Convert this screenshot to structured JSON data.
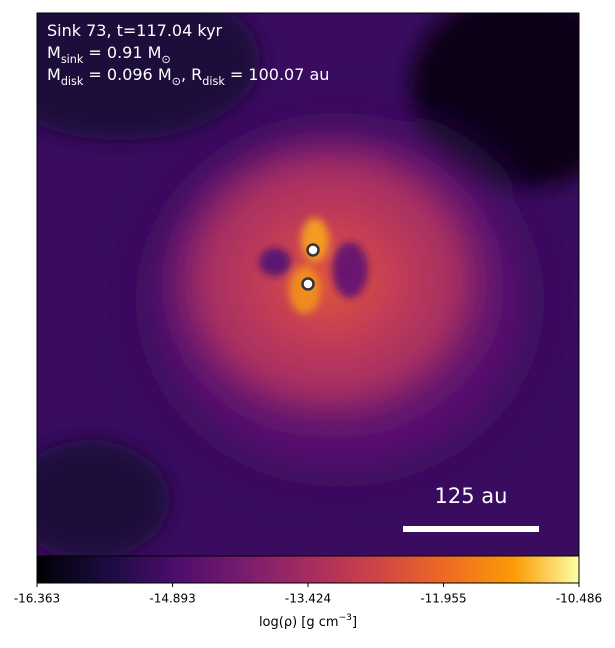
{
  "chart_data": {
    "type": "heatmap",
    "annotations": [
      [
        "Sink 73, t=117.04 kyr"
      ],
      [
        "M",
        "sink",
        " = 0.91 M",
        "⊙"
      ],
      [
        "M",
        "disk",
        " = 0.096 M",
        "⊙",
        ", R",
        "disk",
        " = 100.07 au"
      ]
    ],
    "scale_bar": "125 au",
    "colorbar": {
      "xlim": [
        -16.363,
        -10.486
      ],
      "xticks": [
        -16.363,
        -14.893,
        -13.424,
        -11.955,
        -10.486
      ],
      "xlabel": [
        "log(ρ) [g cm",
        "−3",
        "]"
      ]
    }
  }
}
